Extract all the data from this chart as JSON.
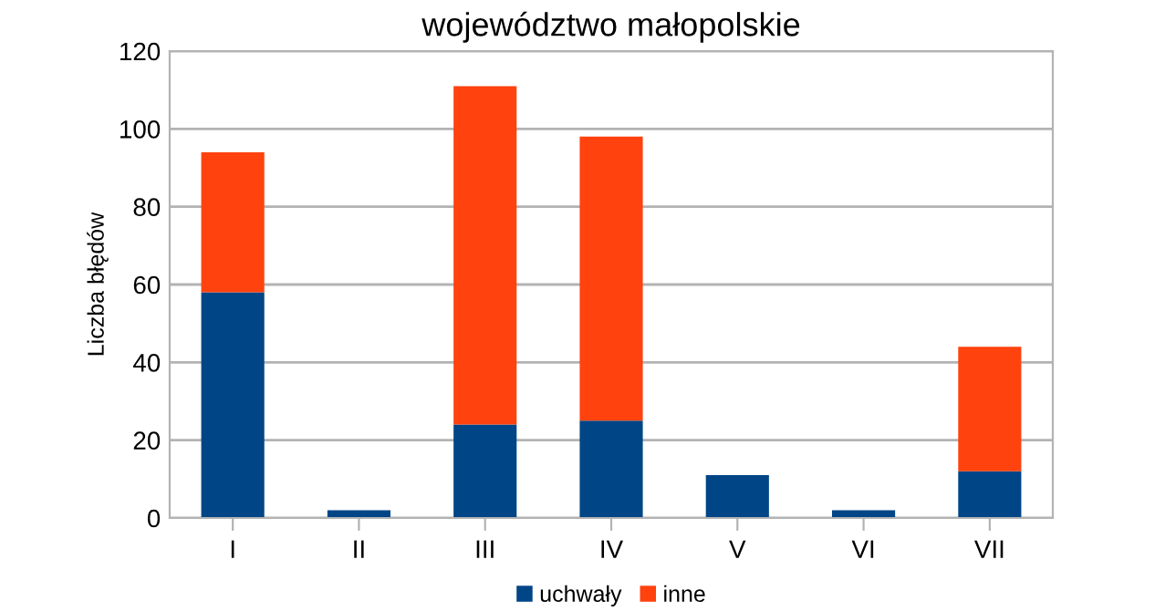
{
  "chart_data": {
    "type": "bar",
    "title": "województwo małopolskie",
    "ylabel": "Liczba błędów",
    "categories": [
      "I",
      "II",
      "III",
      "IV",
      "V",
      "VI",
      "VII"
    ],
    "series": [
      {
        "name": "uchwały",
        "color": "#004586",
        "values": [
          58,
          2,
          24,
          25,
          11,
          2,
          12
        ]
      },
      {
        "name": "inne",
        "color": "#ff420e",
        "values": [
          36,
          0,
          87,
          73,
          0,
          0,
          32
        ]
      }
    ],
    "stacked": true,
    "ylim": [
      0,
      120
    ],
    "yticks": [
      0,
      20,
      40,
      60,
      80,
      100,
      120
    ],
    "grid": "y",
    "legend": "bottom"
  }
}
